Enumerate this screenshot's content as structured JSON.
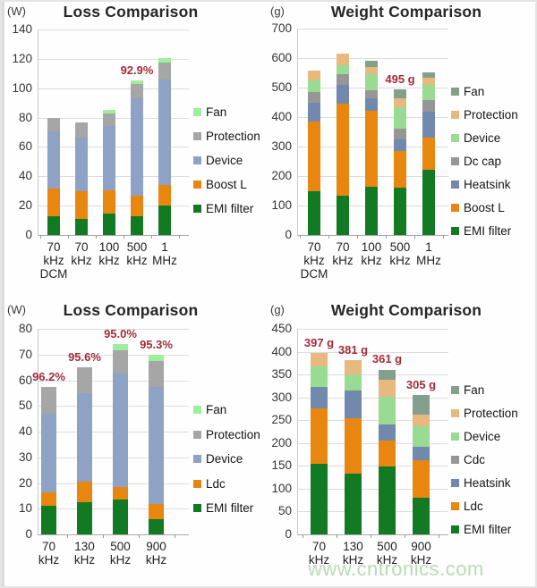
{
  "watermark": "www.cntronics.com",
  "annotation_color": "#a22c3b",
  "chart_data": [
    {
      "type": "bar",
      "subtype": "stacked",
      "position": "top-left",
      "title": "Loss Comparison",
      "unit": "(W)",
      "ylim": [
        0,
        140
      ],
      "ystep": 20,
      "grid": true,
      "legend_position": "right",
      "stack_order": [
        "EMI filter",
        "Boost L",
        "Device",
        "Protection",
        "Fan"
      ],
      "legend": [
        "Fan",
        "Protection",
        "Device",
        "Boost L",
        "EMI filter"
      ],
      "colors": {
        "EMI filter": "#117a22",
        "Boost L": "#e8870f",
        "Device": "#8da2c4",
        "Protection": "#a6a6a6",
        "Fan": "#9cef9c"
      },
      "bars": [
        {
          "category": "70 kHz DCM",
          "label_lines": [
            "70",
            "kHz",
            "DCM"
          ],
          "values": {
            "EMI filter": 13,
            "Boost L": 18.5,
            "Device": 39,
            "Protection": 9.5,
            "Fan": 0
          },
          "total": 80,
          "annotation": null
        },
        {
          "category": "70 kHz",
          "label_lines": [
            "70",
            "kHz"
          ],
          "values": {
            "EMI filter": 11,
            "Boost L": 19,
            "Device": 36.5,
            "Protection": 10.5,
            "Fan": 0
          },
          "total": 77,
          "annotation": null
        },
        {
          "category": "100 kHz",
          "label_lines": [
            "100",
            "kHz"
          ],
          "values": {
            "EMI filter": 14.5,
            "Boost L": 16,
            "Device": 43.5,
            "Protection": 9,
            "Fan": 2.5
          },
          "total": 85.5,
          "annotation": null
        },
        {
          "category": "500 kHz",
          "label_lines": [
            "500",
            "kHz"
          ],
          "values": {
            "EMI filter": 13,
            "Boost L": 14,
            "Device": 66,
            "Protection": 10,
            "Fan": 2.5
          },
          "total": 105.5,
          "annotation": "92.9%"
        },
        {
          "category": "1 MHz",
          "label_lines": [
            "1",
            "MHz"
          ],
          "values": {
            "EMI filter": 20,
            "Boost L": 14,
            "Device": 72,
            "Protection": 11.5,
            "Fan": 3
          },
          "total": 120.5,
          "annotation": null
        }
      ]
    },
    {
      "type": "bar",
      "subtype": "stacked",
      "position": "top-right",
      "title": "Weight Comparison",
      "unit": "(g)",
      "ylim": [
        0,
        700
      ],
      "ystep": 100,
      "grid": true,
      "legend_position": "right",
      "stack_order": [
        "EMI filter",
        "Boost L",
        "Heatsink",
        "Dc cap",
        "Device",
        "Protection",
        "Fan"
      ],
      "legend": [
        "Fan",
        "Protection",
        "Device",
        "Dc cap",
        "Heatsink",
        "Boost L",
        "EMI filter"
      ],
      "colors": {
        "EMI filter": "#117a22",
        "Boost L": "#e8870f",
        "Heatsink": "#7289ae",
        "Dc cap": "#969696",
        "Device": "#99db92",
        "Protection": "#e7b97e",
        "Fan": "#83a08c"
      },
      "bars": [
        {
          "category": "70 kHz DCM",
          "label_lines": [
            "70",
            "kHz",
            "DCM"
          ],
          "values": {
            "EMI filter": 150,
            "Boost L": 235,
            "Heatsink": 65,
            "Dc cap": 35,
            "Device": 40,
            "Protection": 32,
            "Fan": 0
          },
          "total": 557,
          "annotation": null
        },
        {
          "category": "70 kHz",
          "label_lines": [
            "70",
            "kHz"
          ],
          "values": {
            "EMI filter": 132,
            "Boost L": 315,
            "Heatsink": 63,
            "Dc cap": 35,
            "Device": 30,
            "Protection": 40,
            "Fan": 0
          },
          "total": 615,
          "annotation": null
        },
        {
          "category": "100 kHz",
          "label_lines": [
            "100",
            "kHz"
          ],
          "values": {
            "EMI filter": 165,
            "Boost L": 255,
            "Heatsink": 45,
            "Dc cap": 25,
            "Device": 55,
            "Protection": 25,
            "Fan": 20
          },
          "total": 590,
          "annotation": null
        },
        {
          "category": "500 kHz",
          "label_lines": [
            "500",
            "kHz"
          ],
          "values": {
            "EMI filter": 160,
            "Boost L": 125,
            "Heatsink": 40,
            "Dc cap": 37,
            "Device": 70,
            "Protection": 31,
            "Fan": 32
          },
          "total": 495,
          "annotation": "495 g"
        },
        {
          "category": "1 MHz",
          "label_lines": [
            "1",
            "MHz"
          ],
          "values": {
            "EMI filter": 220,
            "Boost L": 110,
            "Heatsink": 88,
            "Dc cap": 40,
            "Device": 50,
            "Protection": 25,
            "Fan": 19
          },
          "total": 552,
          "annotation": null
        }
      ]
    },
    {
      "type": "bar",
      "subtype": "stacked",
      "position": "bottom-left",
      "title": "Loss Comparison",
      "unit": "(W)",
      "ylim": [
        0,
        80
      ],
      "ystep": 10,
      "grid": true,
      "legend_position": "right",
      "stack_order": [
        "EMI filter",
        "Ldc",
        "Device",
        "Protection",
        "Fan"
      ],
      "legend": [
        "Fan",
        "Protection",
        "Device",
        "Ldc",
        "EMI filter"
      ],
      "colors": {
        "EMI filter": "#117a22",
        "Ldc": "#e8870f",
        "Device": "#8da2c4",
        "Protection": "#a6a6a6",
        "Fan": "#9cef9c"
      },
      "bars": [
        {
          "category": "70 kHz",
          "label_lines": [
            "70",
            "kHz"
          ],
          "values": {
            "EMI filter": 11,
            "Ldc": 5.5,
            "Device": 30.5,
            "Protection": 10.5,
            "Fan": 0
          },
          "total": 57.5,
          "annotation": "96.2%"
        },
        {
          "category": "130 kHz",
          "label_lines": [
            "130",
            "kHz"
          ],
          "values": {
            "EMI filter": 12.5,
            "Ldc": 8,
            "Device": 34.5,
            "Protection": 10,
            "Fan": 0
          },
          "total": 65,
          "annotation": "95.6%"
        },
        {
          "category": "500 kHz",
          "label_lines": [
            "500",
            "kHz"
          ],
          "values": {
            "EMI filter": 13.5,
            "Ldc": 5,
            "Device": 44,
            "Protection": 9,
            "Fan": 2.5
          },
          "total": 74,
          "annotation": "95.0%"
        },
        {
          "category": "900 kHz",
          "label_lines": [
            "900",
            "kHz"
          ],
          "values": {
            "EMI filter": 6,
            "Ldc": 6,
            "Device": 45.5,
            "Protection": 10,
            "Fan": 2.5
          },
          "total": 70,
          "annotation": "95.3%"
        }
      ]
    },
    {
      "type": "bar",
      "subtype": "stacked",
      "position": "bottom-right",
      "title": "Weight Comparison",
      "unit": "(g)",
      "ylim": [
        0,
        450
      ],
      "ystep": 50,
      "grid": true,
      "legend_position": "right",
      "stack_order": [
        "EMI filter",
        "Ldc",
        "Heatsink",
        "Cdc",
        "Device",
        "Protection",
        "Fan"
      ],
      "legend": [
        "Fan",
        "Protection",
        "Device",
        "Cdc",
        "Heatsink",
        "Ldc",
        "EMI filter"
      ],
      "colors": {
        "EMI filter": "#117a22",
        "Ldc": "#e8870f",
        "Heatsink": "#7289ae",
        "Cdc": "#969696",
        "Device": "#99db92",
        "Protection": "#e7b97e",
        "Fan": "#83a08c"
      },
      "bars": [
        {
          "category": "70 kHz",
          "label_lines": [
            "70",
            "kHz"
          ],
          "values": {
            "EMI filter": 155,
            "Ldc": 120,
            "Heatsink": 48,
            "Cdc": 0,
            "Device": 45,
            "Protection": 29,
            "Fan": 0
          },
          "total": 397,
          "annotation": "397 g"
        },
        {
          "category": "130 kHz",
          "label_lines": [
            "130",
            "kHz"
          ],
          "values": {
            "EMI filter": 133,
            "Ldc": 121,
            "Heatsink": 62,
            "Cdc": 0,
            "Device": 34,
            "Protection": 31,
            "Fan": 0
          },
          "total": 381,
          "annotation": "381 g"
        },
        {
          "category": "500 kHz",
          "label_lines": [
            "500",
            "kHz"
          ],
          "values": {
            "EMI filter": 148,
            "Ldc": 58,
            "Heatsink": 34,
            "Cdc": 0,
            "Device": 61,
            "Protection": 37,
            "Fan": 23
          },
          "total": 361,
          "annotation": "361 g"
        },
        {
          "category": "900 kHz",
          "label_lines": [
            "900",
            "kHz"
          ],
          "values": {
            "EMI filter": 80,
            "Ldc": 82,
            "Heatsink": 30,
            "Cdc": 0,
            "Device": 45,
            "Protection": 25,
            "Fan": 43
          },
          "total": 305,
          "annotation": "305 g"
        }
      ]
    }
  ]
}
